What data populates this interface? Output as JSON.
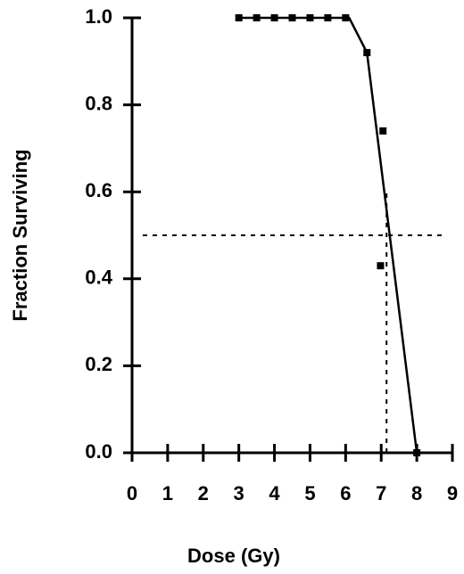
{
  "chart_data": {
    "type": "scatter",
    "xlabel": "Dose (Gy)",
    "ylabel": "Fraction Surviving",
    "x": [
      3,
      3.5,
      4,
      4.5,
      5,
      5.5,
      6,
      6.6,
      7.05,
      6.98,
      8.0
    ],
    "values": [
      1.0,
      1.0,
      1.0,
      1.0,
      1.0,
      1.0,
      1.0,
      0.92,
      0.74,
      0.43,
      0.0
    ],
    "color": "#000000",
    "fit": {
      "x": [
        3,
        6.1,
        6.6,
        8.0
      ],
      "values": [
        1.0,
        1.0,
        0.92,
        0.0
      ]
    },
    "guides": [
      {
        "x": [
          0.3,
          8.8
        ],
        "values": [
          0.5,
          0.5
        ]
      },
      {
        "x": [
          7.15,
          7.15
        ],
        "values": [
          0.0,
          0.6
        ]
      }
    ],
    "xlim": [
      0,
      9
    ],
    "ylim": [
      0,
      1
    ],
    "xticks": [
      0,
      1,
      2,
      3,
      4,
      5,
      6,
      7,
      8,
      9
    ],
    "yticks": [
      {
        "value": 0,
        "label": "0.0"
      },
      0.2,
      0.4,
      0.6,
      0.8,
      {
        "value": 1,
        "label": "1.0"
      }
    ]
  }
}
